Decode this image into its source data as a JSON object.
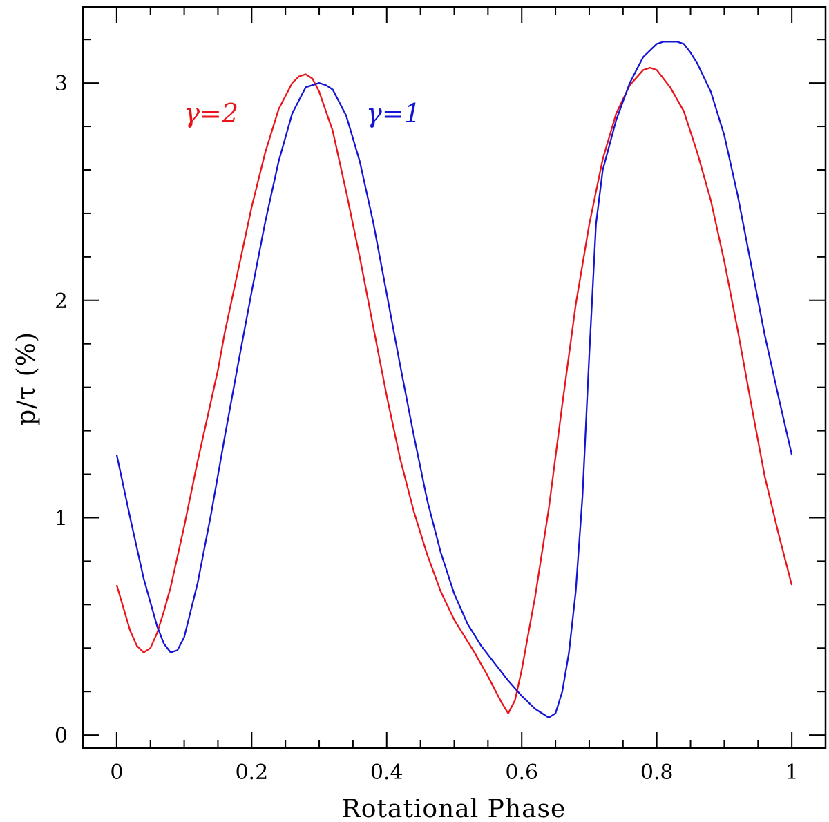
{
  "chart_data": {
    "type": "line",
    "xlabel": "Rotational Phase",
    "ylabel": "p/τ (%)",
    "xlim": [
      -0.05,
      1.05
    ],
    "ylim": [
      -0.06,
      3.35
    ],
    "x_ticks": [
      0,
      0.2,
      0.4,
      0.6,
      0.8,
      1
    ],
    "x_tick_labels": [
      "0",
      "0.2",
      "0.4",
      "0.6",
      "0.8",
      "1"
    ],
    "y_ticks": [
      0,
      1,
      2,
      3
    ],
    "y_tick_labels": [
      "0",
      "1",
      "2",
      "3"
    ],
    "grid": false,
    "series": [
      {
        "name": "γ=2",
        "color": "#e8141a",
        "x": [
          0,
          0.02,
          0.03,
          0.04,
          0.05,
          0.06,
          0.07,
          0.08,
          0.1,
          0.12,
          0.15,
          0.16,
          0.18,
          0.2,
          0.22,
          0.24,
          0.26,
          0.27,
          0.28,
          0.29,
          0.3,
          0.32,
          0.34,
          0.36,
          0.38,
          0.4,
          0.42,
          0.44,
          0.46,
          0.48,
          0.5,
          0.53,
          0.55,
          0.57,
          0.58,
          0.59,
          0.6,
          0.62,
          0.64,
          0.66,
          0.68,
          0.7,
          0.72,
          0.74,
          0.76,
          0.78,
          0.79,
          0.8,
          0.82,
          0.84,
          0.86,
          0.88,
          0.9,
          0.92,
          0.94,
          0.96,
          0.98,
          1.0
        ],
        "y": [
          0.69,
          0.48,
          0.41,
          0.38,
          0.4,
          0.47,
          0.57,
          0.68,
          0.96,
          1.26,
          1.68,
          1.85,
          2.14,
          2.43,
          2.68,
          2.88,
          3.0,
          3.03,
          3.04,
          3.02,
          2.96,
          2.78,
          2.5,
          2.2,
          1.88,
          1.56,
          1.27,
          1.03,
          0.83,
          0.66,
          0.53,
          0.38,
          0.27,
          0.15,
          0.1,
          0.16,
          0.3,
          0.64,
          1.04,
          1.52,
          1.98,
          2.35,
          2.65,
          2.86,
          2.99,
          3.06,
          3.07,
          3.06,
          2.98,
          2.87,
          2.68,
          2.46,
          2.18,
          1.86,
          1.52,
          1.19,
          0.93,
          0.69
        ]
      },
      {
        "name": "γ=1",
        "color": "#1414d4",
        "x": [
          0,
          0.02,
          0.04,
          0.06,
          0.07,
          0.08,
          0.09,
          0.1,
          0.12,
          0.14,
          0.16,
          0.18,
          0.2,
          0.22,
          0.24,
          0.26,
          0.28,
          0.3,
          0.31,
          0.32,
          0.34,
          0.36,
          0.38,
          0.4,
          0.42,
          0.44,
          0.46,
          0.48,
          0.5,
          0.52,
          0.54,
          0.56,
          0.58,
          0.6,
          0.62,
          0.64,
          0.65,
          0.66,
          0.67,
          0.68,
          0.69,
          0.7,
          0.71,
          0.72,
          0.74,
          0.76,
          0.78,
          0.8,
          0.81,
          0.82,
          0.83,
          0.84,
          0.85,
          0.86,
          0.88,
          0.9,
          0.92,
          0.94,
          0.96,
          0.98,
          1.0
        ],
        "y": [
          1.29,
          1.0,
          0.72,
          0.5,
          0.42,
          0.38,
          0.39,
          0.45,
          0.7,
          1.02,
          1.37,
          1.71,
          2.04,
          2.36,
          2.64,
          2.86,
          2.98,
          3.0,
          2.99,
          2.97,
          2.85,
          2.64,
          2.36,
          2.03,
          1.7,
          1.38,
          1.08,
          0.84,
          0.65,
          0.51,
          0.41,
          0.33,
          0.25,
          0.18,
          0.12,
          0.08,
          0.1,
          0.2,
          0.38,
          0.66,
          1.1,
          1.75,
          2.35,
          2.6,
          2.83,
          3.0,
          3.12,
          3.18,
          3.19,
          3.19,
          3.19,
          3.18,
          3.14,
          3.09,
          2.96,
          2.76,
          2.48,
          2.16,
          1.84,
          1.56,
          1.29
        ]
      }
    ],
    "annotations": [
      {
        "text": "γ=2",
        "x": 0.14,
        "y": 2.82,
        "color": "#e8141a"
      },
      {
        "text": "γ=1",
        "x": 0.41,
        "y": 2.82,
        "color": "#1414d4"
      }
    ]
  }
}
